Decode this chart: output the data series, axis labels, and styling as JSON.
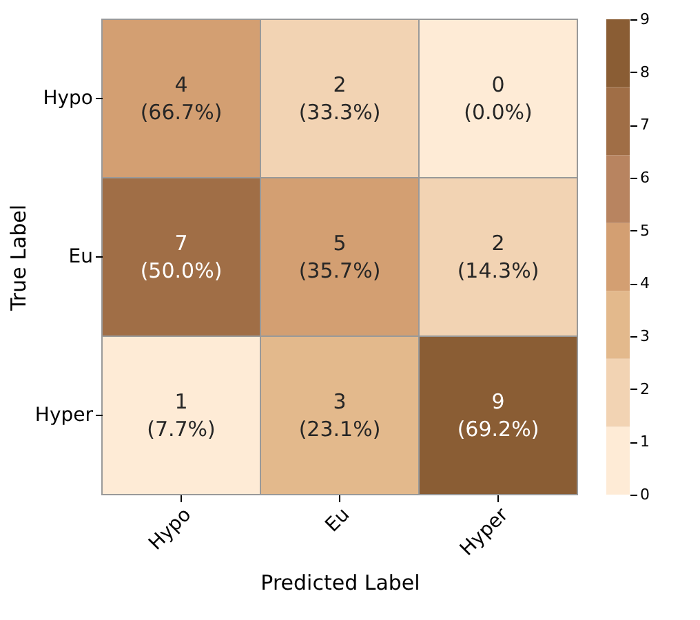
{
  "chart_data": {
    "type": "heatmap",
    "xlabel": "Predicted Label",
    "ylabel": "True Label",
    "categories": [
      "Hypo",
      "Eu",
      "Hyper"
    ],
    "y_categories": [
      "Hypo",
      "Eu",
      "Hyper"
    ],
    "cells": [
      [
        4,
        2,
        0
      ],
      [
        7,
        5,
        2
      ],
      [
        1,
        3,
        9
      ]
    ],
    "data_labels": true,
    "annotations": [
      "(66.7%)",
      "(33.3%)",
      "(0.0%)",
      "(50.0%)",
      "(35.7%)",
      "(14.3%)",
      "(7.7%)",
      "(23.1%)",
      "(69.2%)"
    ],
    "colors": [
      "#feebd6",
      "#f2d3b3",
      "#e3b98c",
      "#d39f72",
      "#b88460",
      "#a06e46",
      "#8a5d34"
    ],
    "clim": [
      0,
      9
    ],
    "cticks": [
      0,
      1,
      2,
      3,
      4,
      5,
      6,
      7,
      8,
      9
    ]
  }
}
